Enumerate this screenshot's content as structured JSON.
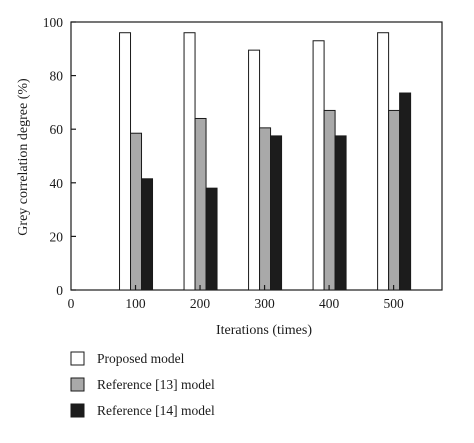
{
  "chart_data": {
    "type": "bar",
    "xlabel": "Iterations (times)",
    "ylabel": "Grey correlation degree (%)",
    "ylim": [
      0,
      100
    ],
    "xlim": [
      0,
      575
    ],
    "x_ticks": [
      "0",
      "100",
      "200",
      "300",
      "400",
      "500"
    ],
    "y_ticks": [
      "0",
      "20",
      "40",
      "60",
      "80",
      "100"
    ],
    "categories": [
      "100",
      "200",
      "300",
      "400",
      "500"
    ],
    "series": [
      {
        "name": "Proposed model",
        "color": "#ffffff",
        "values": [
          96,
          96,
          89.5,
          93,
          96
        ]
      },
      {
        "name": "Reference [13] model",
        "color": "#a9a9a9",
        "values": [
          58.5,
          64,
          60.5,
          67,
          67
        ]
      },
      {
        "name": "Reference [14] model",
        "color": "#1c1c1c",
        "values": [
          41.5,
          38,
          57.5,
          57.5,
          73.5
        ]
      }
    ],
    "grid": false,
    "legend_position": "bottom-left"
  }
}
